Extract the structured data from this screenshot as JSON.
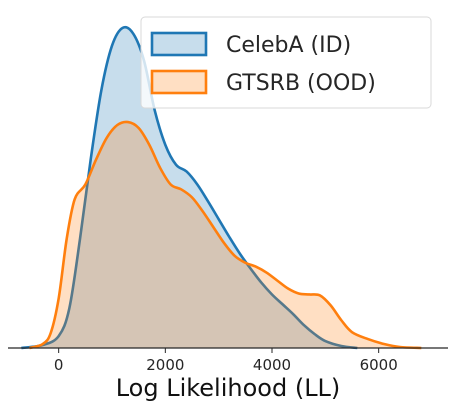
{
  "chart_data": {
    "type": "area",
    "xlabel": "Log Likelihood (LL)",
    "ylabel": "",
    "xlim": [
      -950,
      7300
    ],
    "ylim": [
      0,
      0.000335
    ],
    "x_ticks": [
      0,
      2000,
      4000,
      6000
    ],
    "x_tick_labels": [
      "0",
      "2000",
      "4000",
      "6000"
    ],
    "grid": false,
    "legend_position": "top-right",
    "series": [
      {
        "name": "CelebA (ID)",
        "color": "#1f77b4",
        "points": [
          [
            -700,
            0
          ],
          [
            -300,
            3e-06
          ],
          [
            0,
            1.2e-05
          ],
          [
            200,
            4e-05
          ],
          [
            400,
            0.00011
          ],
          [
            600,
            0.00019
          ],
          [
            800,
            0.00026
          ],
          [
            1000,
            0.000305
          ],
          [
            1200,
            0.000323
          ],
          [
            1400,
            0.000317
          ],
          [
            1600,
            0.00029
          ],
          [
            1800,
            0.00024
          ],
          [
            2000,
            0.000205
          ],
          [
            2200,
            0.000185
          ],
          [
            2400,
            0.000178
          ],
          [
            2600,
            0.000165
          ],
          [
            2800,
            0.000148
          ],
          [
            3000,
            0.00013
          ],
          [
            3200,
            0.000112
          ],
          [
            3400,
            9.5e-05
          ],
          [
            3600,
            8e-05
          ],
          [
            3800,
            6.6e-05
          ],
          [
            4000,
            5.4e-05
          ],
          [
            4200,
            4.4e-05
          ],
          [
            4400,
            3.4e-05
          ],
          [
            4600,
            2.3e-05
          ],
          [
            4800,
            1.4e-05
          ],
          [
            5000,
            7e-06
          ],
          [
            5300,
            2e-06
          ],
          [
            5600,
            0
          ]
        ]
      },
      {
        "name": "GTSRB (OOD)",
        "color": "#ff7f0e",
        "points": [
          [
            -550,
            0
          ],
          [
            -300,
            4e-06
          ],
          [
            -150,
            1.5e-05
          ],
          [
            0,
            5e-05
          ],
          [
            150,
            0.00011
          ],
          [
            300,
            0.00015
          ],
          [
            500,
            0.000165
          ],
          [
            700,
            0.00019
          ],
          [
            900,
            0.000212
          ],
          [
            1100,
            0.000225
          ],
          [
            1300,
            0.000228
          ],
          [
            1500,
            0.000222
          ],
          [
            1700,
            0.000205
          ],
          [
            1900,
            0.000182
          ],
          [
            2100,
            0.000165
          ],
          [
            2300,
            0.00016
          ],
          [
            2500,
            0.000152
          ],
          [
            2700,
            0.000138
          ],
          [
            2900,
            0.000122
          ],
          [
            3100,
            0.000106
          ],
          [
            3300,
            9.3e-05
          ],
          [
            3500,
            8.6e-05
          ],
          [
            3700,
            8.2e-05
          ],
          [
            3900,
            7.6e-05
          ],
          [
            4100,
            6.8e-05
          ],
          [
            4300,
            6e-05
          ],
          [
            4500,
            5.5e-05
          ],
          [
            4700,
            5.4e-05
          ],
          [
            4900,
            5.3e-05
          ],
          [
            5100,
            4.3e-05
          ],
          [
            5300,
            2.8e-05
          ],
          [
            5500,
            1.6e-05
          ],
          [
            5800,
            9e-06
          ],
          [
            6100,
            4e-06
          ],
          [
            6400,
            1e-06
          ],
          [
            6800,
            0
          ]
        ]
      }
    ]
  }
}
